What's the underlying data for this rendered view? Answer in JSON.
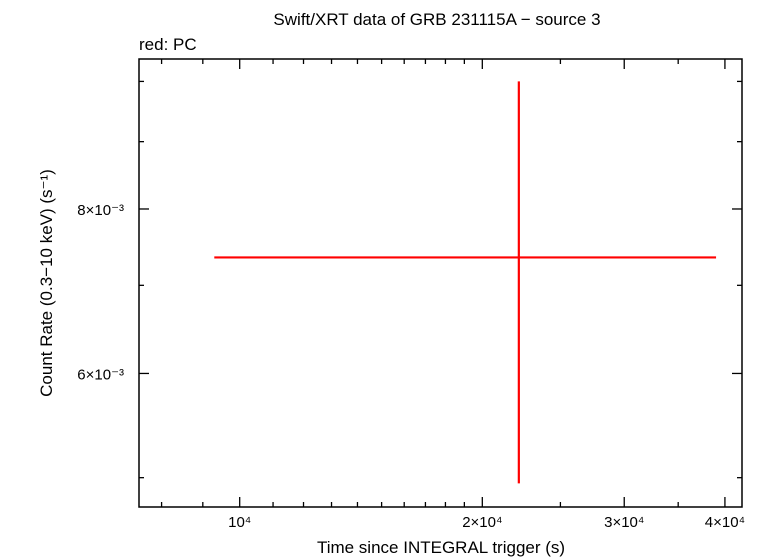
{
  "chart_data": {
    "type": "scatter",
    "title": "Swift/XRT data of GRB 231115A − source 3",
    "legend_text": "red: PC",
    "xlabel": "Time since INTEGRAL trigger (s)",
    "ylabel": "Count Rate (0.3−10 keV) (s⁻¹)",
    "x_scale": "log",
    "y_scale": "log",
    "xlim": [
      7500,
      42000
    ],
    "ylim": [
      0.00475,
      0.0104
    ],
    "x_ticks": [
      {
        "value": 10000,
        "label": "10⁴"
      },
      {
        "value": 20000,
        "label": "2×10⁴"
      },
      {
        "value": 30000,
        "label": "3×10⁴"
      },
      {
        "value": 40000,
        "label": "4×10⁴"
      }
    ],
    "x_minor_ticks": [
      8000,
      9000,
      11000,
      12000,
      13000,
      14000,
      15000,
      16000,
      17000,
      18000,
      19000,
      25000,
      35000
    ],
    "y_ticks": [
      {
        "value": 0.006,
        "label": "6×10⁻³"
      },
      {
        "value": 0.008,
        "label": "8×10⁻³"
      }
    ],
    "y_minor_ticks": [
      0.005,
      0.007,
      0.009,
      0.01
    ],
    "grid": false,
    "series": [
      {
        "name": "PC",
        "color": "#ff0000",
        "points": [
          {
            "x": 22200,
            "y": 0.00735,
            "x_low": 9300,
            "x_high": 39000,
            "y_low": 0.00495,
            "y_high": 0.01
          }
        ]
      }
    ]
  }
}
